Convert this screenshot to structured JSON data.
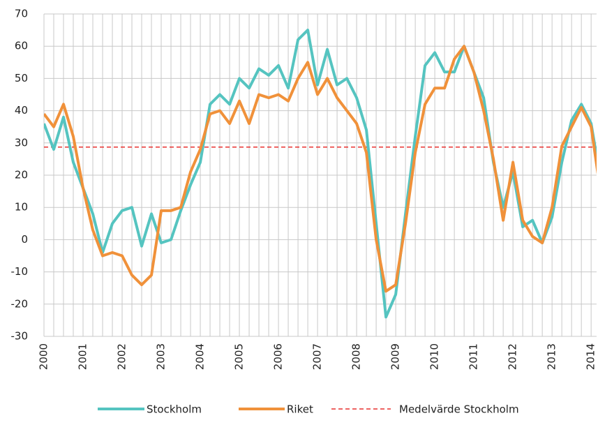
{
  "chart_data": {
    "type": "line",
    "x": [
      2000,
      2000.25,
      2000.5,
      2000.75,
      2001,
      2001.25,
      2001.5,
      2001.75,
      2002,
      2002.25,
      2002.5,
      2002.75,
      2003,
      2003.25,
      2003.5,
      2003.75,
      2004,
      2004.25,
      2004.5,
      2004.75,
      2005,
      2005.25,
      2005.5,
      2005.75,
      2006,
      2006.25,
      2006.5,
      2006.75,
      2007,
      2007.25,
      2007.5,
      2007.75,
      2008,
      2008.25,
      2008.5,
      2008.75,
      2009,
      2009.25,
      2009.5,
      2009.75,
      2010,
      2010.25,
      2010.5,
      2010.75,
      2011,
      2011.25,
      2011.5,
      2011.75,
      2012,
      2012.25,
      2012.5,
      2012.75,
      2013,
      2013.25,
      2013.5,
      2013.75,
      2014,
      2014.25
    ],
    "series": [
      {
        "name": "Stockholm",
        "color": "#55c4c0",
        "values": [
          36,
          28,
          38,
          24,
          16,
          8,
          -4,
          5,
          9,
          10,
          -2,
          8,
          -1,
          0,
          9,
          17,
          24,
          42,
          45,
          42,
          50,
          47,
          53,
          51,
          54,
          47,
          62,
          65,
          48,
          59,
          48,
          50,
          44,
          34,
          5,
          -24,
          -17,
          8,
          32,
          54,
          58,
          52,
          52,
          60,
          52,
          44,
          24,
          10,
          21,
          4,
          6,
          -1,
          7,
          24,
          37,
          42,
          36,
          18
        ]
      },
      {
        "name": "Riket",
        "color": "#f0913a",
        "values": [
          39,
          35,
          42,
          32,
          16,
          3,
          -5,
          -4,
          -5,
          -11,
          -14,
          -11,
          9,
          9,
          10,
          21,
          28,
          39,
          40,
          36,
          43,
          36,
          45,
          44,
          45,
          43,
          50,
          55,
          45,
          50,
          44,
          40,
          36,
          27,
          0,
          -16,
          -14,
          5,
          27,
          42,
          47,
          47,
          56,
          60,
          52,
          40,
          25,
          6,
          24,
          6,
          1,
          -1,
          10,
          29,
          35,
          41,
          35,
          14
        ]
      }
    ],
    "reference_line": {
      "name": "Medelvärde Stockholm",
      "value": 28.7,
      "color": "#e8312f"
    },
    "xlim": [
      2000,
      2014.14
    ],
    "xticks": [
      2000,
      2001,
      2002,
      2003,
      2004,
      2005,
      2006,
      2007,
      2008,
      2009,
      2010,
      2011,
      2012,
      2013,
      2014
    ],
    "ylim": [
      -30,
      70
    ],
    "yticks": [
      -30,
      -20,
      -10,
      0,
      10,
      20,
      30,
      40,
      50,
      60,
      70
    ],
    "grid": true
  }
}
